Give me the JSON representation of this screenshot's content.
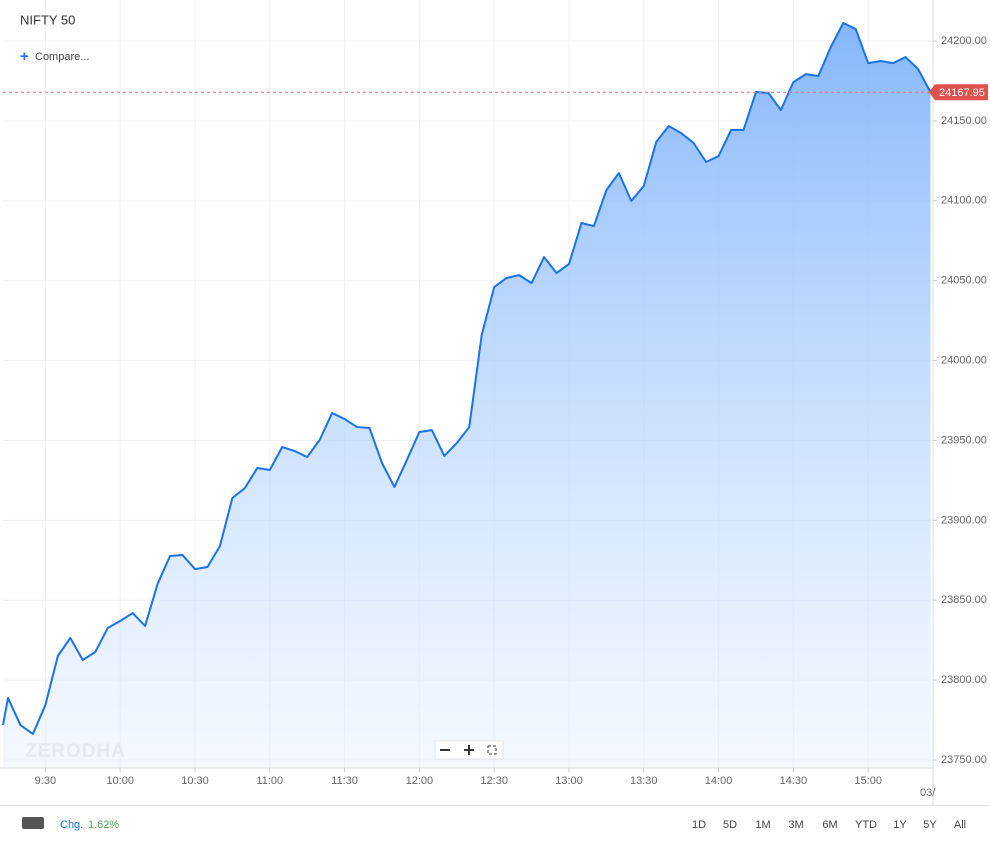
{
  "chart_data": {
    "type": "area",
    "title": "NIFTY 50",
    "color": "#1a73e8",
    "x": [
      553,
      555,
      560,
      565,
      570,
      575,
      580,
      585,
      590,
      595,
      600,
      605,
      610,
      615,
      620,
      625,
      630,
      635,
      640,
      645,
      650,
      655,
      660,
      665,
      670,
      675,
      680,
      685,
      690,
      695,
      700,
      705,
      710,
      715,
      720,
      725,
      730,
      735,
      740,
      745,
      750,
      755,
      760,
      765,
      770,
      775,
      780,
      785,
      790,
      795,
      800,
      805,
      810,
      815,
      820,
      825,
      830,
      835,
      840,
      845,
      850,
      855,
      860,
      865,
      870,
      875,
      880,
      885,
      890,
      895,
      900,
      905,
      910,
      915,
      920,
      925
    ],
    "values": [
      23771.9,
      23788.8,
      23771.9,
      23766.3,
      23784.4,
      23815.1,
      23826.4,
      23812.6,
      23817.6,
      23832.6,
      23837,
      23842,
      23833.9,
      23860.2,
      23877.7,
      23878.3,
      23869.5,
      23870.8,
      23883.9,
      23914,
      23920.2,
      23932.8,
      23931.5,
      23945.9,
      23943.4,
      23939.6,
      23950.3,
      23967.2,
      23963.4,
      23958.4,
      23957.8,
      23935.9,
      23920.9,
      23937.8,
      23955.3,
      23956.5,
      23940.3,
      23948.4,
      23958.4,
      24016,
      24046,
      24051.7,
      24053.5,
      24048.5,
      24064.8,
      24054.8,
      24060.4,
      24086.1,
      24084.2,
      24106.7,
      24117.4,
      24099.9,
      24109.3,
      24136.8,
      24146.8,
      24142.4,
      24136.2,
      24124.3,
      24128,
      24144.3,
      24144.3,
      24168.1,
      24167.5,
      24156.8,
      24174.3,
      24179.3,
      24178.1,
      24196.2,
      24211.3,
      24207.5,
      24186.2,
      24187.5,
      24186.2,
      24190,
      24182.5,
      24167.95
    ],
    "xlim": [
      553,
      926
    ],
    "xticks": [
      {
        "value": 570,
        "label": "9:30"
      },
      {
        "value": 600,
        "label": "10:00"
      },
      {
        "value": 630,
        "label": "10:30"
      },
      {
        "value": 660,
        "label": "11:00"
      },
      {
        "value": 690,
        "label": "11:30"
      },
      {
        "value": 720,
        "label": "12:00"
      },
      {
        "value": 750,
        "label": "12:30"
      },
      {
        "value": 780,
        "label": "13:00"
      },
      {
        "value": 810,
        "label": "13:30"
      },
      {
        "value": 840,
        "label": "14:00"
      },
      {
        "value": 870,
        "label": "14:30"
      },
      {
        "value": 900,
        "label": "15:00"
      }
    ],
    "ylim": [
      23745,
      24225.7
    ],
    "yticks": [
      {
        "value": 23750,
        "label": "23750.00"
      },
      {
        "value": 23800,
        "label": "23800.00"
      },
      {
        "value": 23850,
        "label": "23850.00"
      },
      {
        "value": 23900,
        "label": "23900.00"
      },
      {
        "value": 23950,
        "label": "23950.00"
      },
      {
        "value": 24000,
        "label": "24000.00"
      },
      {
        "value": 24050,
        "label": "24050.00"
      },
      {
        "value": 24100,
        "label": "24100.00"
      },
      {
        "value": 24150,
        "label": "24150.00"
      },
      {
        "value": 24200,
        "label": "24200.00"
      }
    ],
    "last_price": 24167.95,
    "grid": true
  },
  "compare": "Compare...",
  "watermark": "ZERODHA",
  "date_fragment": "03/",
  "footer": {
    "change_label": "Chg.",
    "change_value": "1.62%",
    "ranges": [
      "1D",
      "5D",
      "1M",
      "3M",
      "6M",
      "YTD",
      "1Y",
      "5Y",
      "All"
    ]
  }
}
